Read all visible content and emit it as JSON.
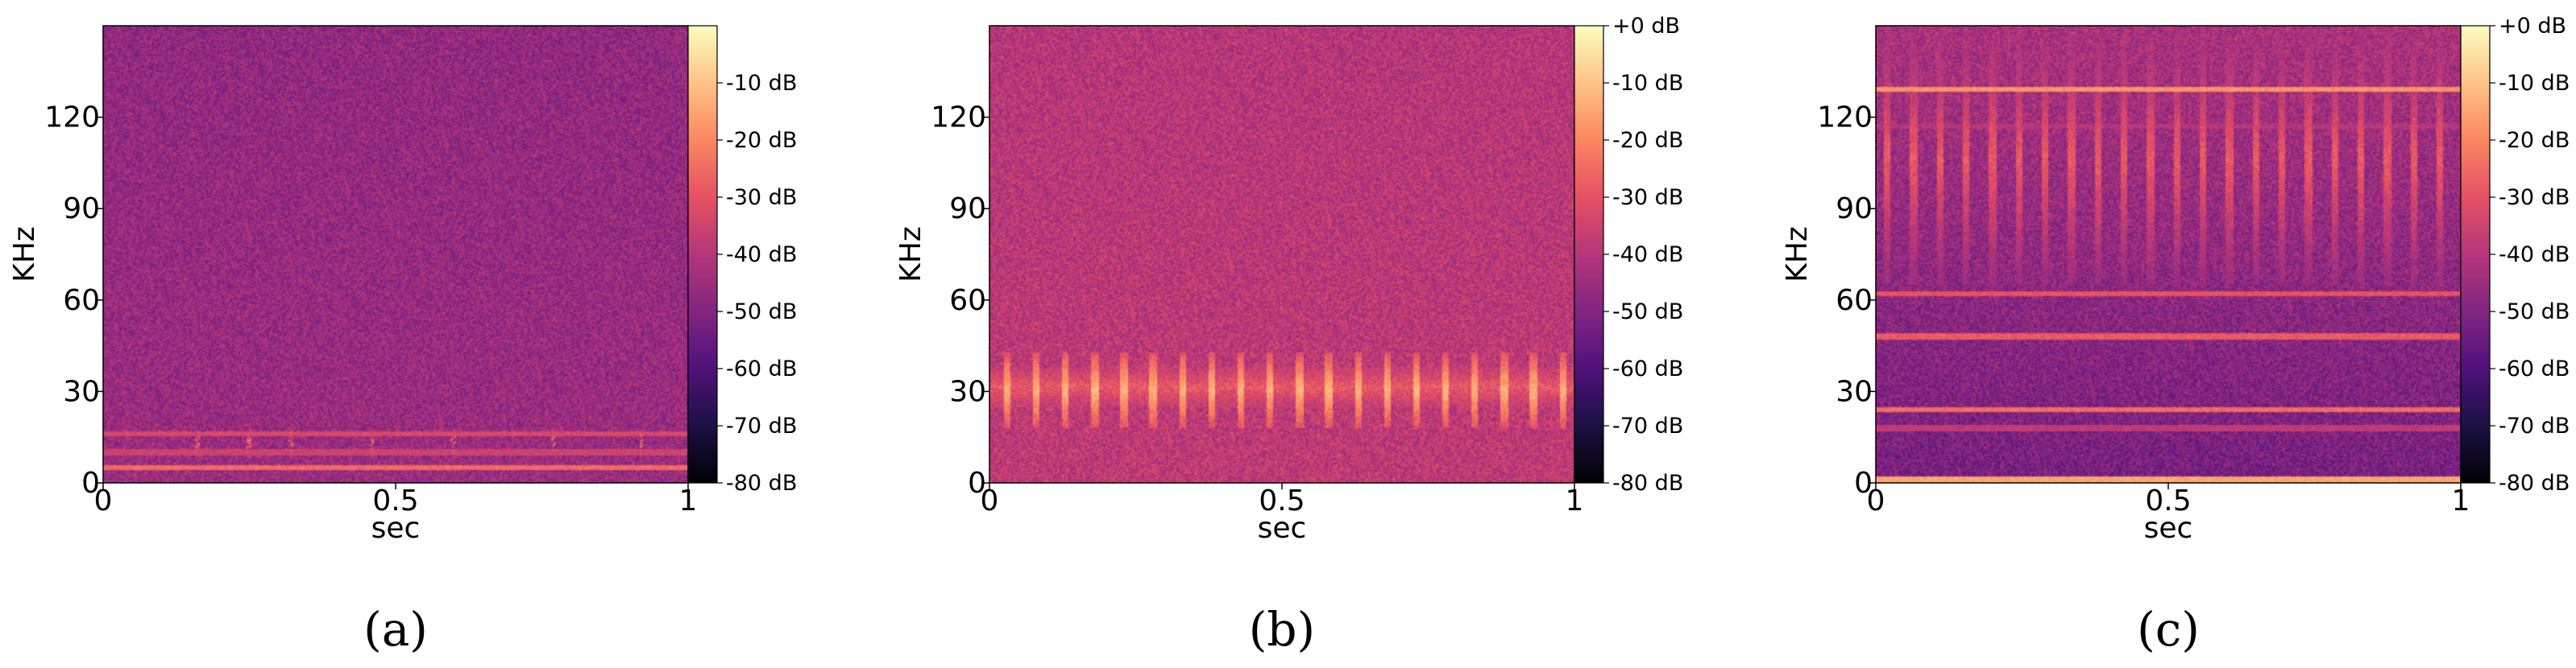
{
  "figure": {
    "panel_captions": [
      "(a)",
      "(b)",
      "(c)"
    ]
  },
  "colors": {
    "colormap": "magma",
    "colorbar_stops": [
      "#000004",
      "#1c1044",
      "#4f127b",
      "#812581",
      "#b5367a",
      "#e55064",
      "#fb8761",
      "#fec287",
      "#fcfdbf"
    ]
  },
  "chart_data": [
    {
      "type": "heatmap",
      "panel": "(a)",
      "xlabel": "sec",
      "ylabel": "KHz",
      "xlim": [
        0,
        1
      ],
      "ylim": [
        0,
        150
      ],
      "xticks": [
        0,
        0.5,
        1
      ],
      "xtick_labels": [
        "0",
        "0.5",
        "1"
      ],
      "yticks": [
        0,
        30,
        60,
        90,
        120
      ],
      "ytick_labels": [
        "0",
        "30",
        "60",
        "90",
        "120"
      ],
      "colorbar": {
        "vmin": -80,
        "vmax": 0,
        "ticks": [
          -10,
          -20,
          -30,
          -40,
          -50,
          -60,
          -70,
          -80
        ],
        "tick_labels": [
          "-10 dB",
          "-20 dB",
          "-30 dB",
          "-40 dB",
          "-50 dB",
          "-60 dB",
          "-70 dB",
          "-80 dB"
        ]
      },
      "background_db_low": -45,
      "background_db_high": -47,
      "features": [
        {
          "kind": "hline",
          "freq_khz": 16,
          "db": -33
        },
        {
          "kind": "hline",
          "freq_khz": 10,
          "db": -35
        },
        {
          "kind": "hline",
          "freq_khz": 5,
          "db": -25
        },
        {
          "kind": "hline",
          "freq_khz": 3,
          "db": -50
        },
        {
          "kind": "dots",
          "freq_range_khz": [
            8,
            18
          ],
          "times_sec": [
            0.16,
            0.25,
            0.32,
            0.46,
            0.6,
            0.77,
            0.92
          ],
          "db": -22
        }
      ]
    },
    {
      "type": "heatmap",
      "panel": "(b)",
      "xlabel": "sec",
      "ylabel": "KHz",
      "xlim": [
        0,
        1
      ],
      "ylim": [
        0,
        150
      ],
      "xticks": [
        0,
        0.5,
        1
      ],
      "xtick_labels": [
        "0",
        "0.5",
        "1"
      ],
      "yticks": [
        0,
        30,
        60,
        90,
        120
      ],
      "ytick_labels": [
        "0",
        "30",
        "60",
        "90",
        "120"
      ],
      "colorbar": {
        "vmin": -80,
        "vmax": 0,
        "ticks": [
          0,
          -10,
          -20,
          -30,
          -40,
          -50,
          -60,
          -70,
          -80
        ],
        "tick_labels": [
          "+0 dB",
          "-10 dB",
          "-20 dB",
          "-30 dB",
          "-40 dB",
          "-50 dB",
          "-60 dB",
          "-70 dB",
          "-80 dB"
        ]
      },
      "background_db_low": -38,
      "background_db_high": -40,
      "features": [
        {
          "kind": "band",
          "freq_range_khz": [
            25,
            38
          ],
          "db": -28
        },
        {
          "kind": "pulses",
          "freq_range_khz": [
            18,
            43
          ],
          "times_sec": [
            0.03,
            0.08,
            0.13,
            0.18,
            0.23,
            0.28,
            0.33,
            0.38,
            0.43,
            0.48,
            0.53,
            0.58,
            0.63,
            0.68,
            0.73,
            0.78,
            0.83,
            0.88,
            0.93,
            0.98
          ],
          "db": -12
        },
        {
          "kind": "band",
          "freq_range_khz": [
            0,
            4
          ],
          "db": -55
        }
      ]
    },
    {
      "type": "heatmap",
      "panel": "(c)",
      "xlabel": "sec",
      "ylabel": "KHz",
      "xlim": [
        0,
        1
      ],
      "ylim": [
        0,
        150
      ],
      "xticks": [
        0,
        0.5,
        1
      ],
      "xtick_labels": [
        "0",
        "0.5",
        "1"
      ],
      "yticks": [
        0,
        30,
        60,
        90,
        120
      ],
      "ytick_labels": [
        "0",
        "30",
        "60",
        "90",
        "120"
      ],
      "colorbar": {
        "vmin": -80,
        "vmax": 0,
        "ticks": [
          0,
          -10,
          -20,
          -30,
          -40,
          -50,
          -60,
          -70,
          -80
        ],
        "tick_labels": [
          "+0 dB",
          "-10 dB",
          "-20 dB",
          "-30 dB",
          "-40 dB",
          "-50 dB",
          "-60 dB",
          "-70 dB",
          "-80 dB"
        ]
      },
      "background_db_low": -52,
      "background_db_high": -42,
      "features": [
        {
          "kind": "hline",
          "freq_khz": 129,
          "db": -18
        },
        {
          "kind": "hline",
          "freq_khz": 117,
          "db": -40
        },
        {
          "kind": "hline",
          "freq_khz": 62,
          "db": -30
        },
        {
          "kind": "hline",
          "freq_khz": 48,
          "db": -28
        },
        {
          "kind": "hline",
          "freq_khz": 24,
          "db": -25
        },
        {
          "kind": "hline",
          "freq_khz": 18,
          "db": -38
        },
        {
          "kind": "hline",
          "freq_khz": 1,
          "db": -15
        },
        {
          "kind": "pulses",
          "freq_range_khz": [
            65,
            148
          ],
          "times_sec": [
            0.02,
            0.065,
            0.11,
            0.155,
            0.2,
            0.245,
            0.29,
            0.335,
            0.38,
            0.425,
            0.47,
            0.515,
            0.56,
            0.605,
            0.65,
            0.695,
            0.74,
            0.785,
            0.83,
            0.875,
            0.92,
            0.965
          ],
          "db": -28
        }
      ]
    }
  ]
}
